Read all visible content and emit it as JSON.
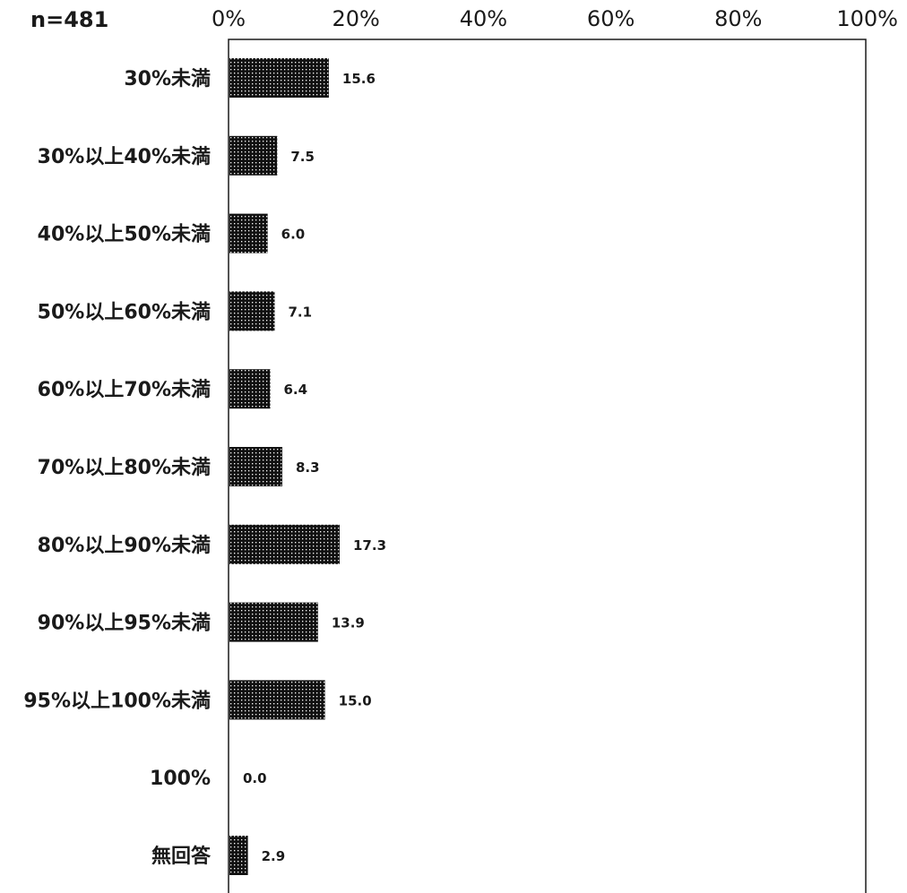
{
  "chart_data": {
    "type": "bar",
    "orientation": "horizontal",
    "sample_label": "n=481",
    "categories": [
      "30%未満",
      "30%以上40%未満",
      "40%以上50%未満",
      "50%以上60%未満",
      "60%以上70%未満",
      "70%以上80%未満",
      "80%以上90%未満",
      "90%以上95%未満",
      "95%以上100%未満",
      "100%",
      "無回答"
    ],
    "values": [
      15.6,
      7.5,
      6.0,
      7.1,
      6.4,
      8.3,
      17.3,
      13.9,
      15.0,
      0.0,
      2.9
    ],
    "value_labels": [
      "15.6",
      "7.5",
      "6.0",
      "7.1",
      "6.4",
      "8.3",
      "17.3",
      "13.9",
      "15.0",
      "0.0",
      "2.9"
    ],
    "x_ticks": [
      "0%",
      "20%",
      "40%",
      "60%",
      "80%",
      "100%"
    ],
    "xlim": [
      0,
      100
    ],
    "grid": false,
    "bar_fill": "dotted-black",
    "colors": {
      "bar": "#111111",
      "dots": "#ffffff",
      "axis": "#1a1a1a"
    }
  }
}
